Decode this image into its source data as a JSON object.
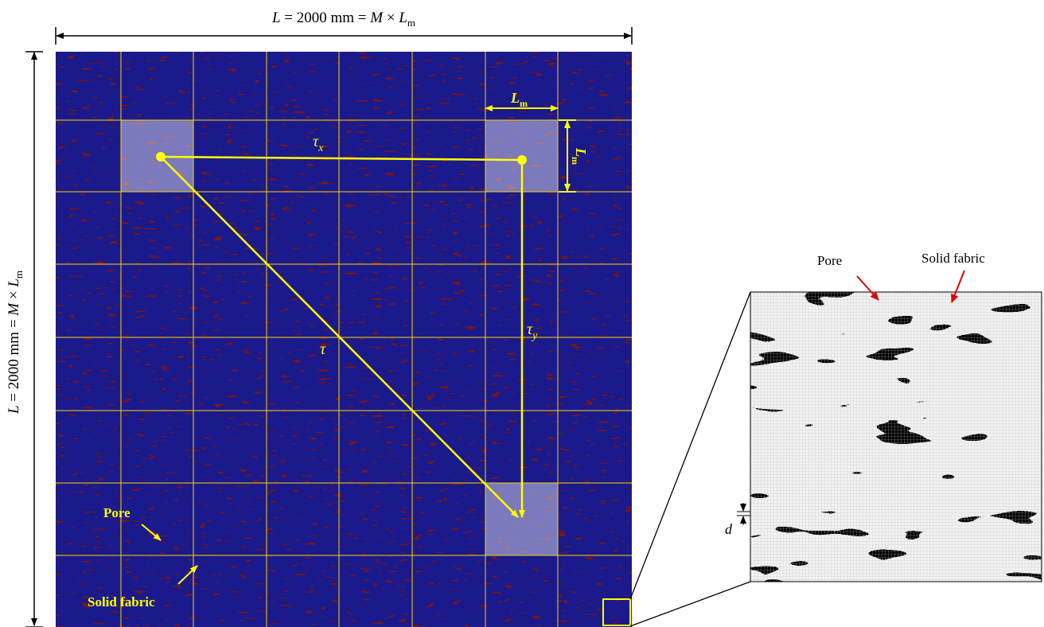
{
  "top_dimension": {
    "lead": "L",
    "mid": " = 2000 mm = ",
    "m": "M",
    "times": " × ",
    "l": "L",
    "sub": "m"
  },
  "left_dimension": {
    "lead": "L",
    "mid": " = 2000 mm = ",
    "m": "M",
    "times": " × ",
    "l": "L",
    "sub": "m"
  },
  "cell_width_label": {
    "main": "L",
    "sub": "m"
  },
  "cell_height_label": {
    "main": "L",
    "sub": "m"
  },
  "tau_x_label": {
    "main": "τ",
    "sub": "x"
  },
  "tau_y_label": {
    "main": "τ",
    "sub": "y"
  },
  "tau_label": "τ",
  "pore_label_main": "Pore",
  "solid_label_main": "Solid fabric",
  "pore_label_zoom": "Pore",
  "solid_label_zoom": "Solid fabric",
  "d_label": "d",
  "colors": {
    "pore": "#1a1a8c",
    "solid": "#7a1414",
    "grid": "#ffd400",
    "annotation": "#ffff00",
    "zoom_solid": "#000000",
    "zoom_pore": "#f2f2f2",
    "arrow_red": "#e00000"
  }
}
